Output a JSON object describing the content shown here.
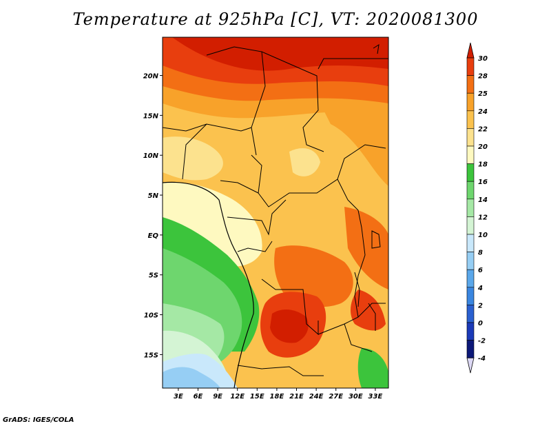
{
  "title": "Temperature at 925hPa [C], VT: 2020081300",
  "credit": "GrADS: IGES/COLA",
  "map": {
    "lat_labels": [
      "20N",
      "15N",
      "10N",
      "5N",
      "EQ",
      "5S",
      "10S",
      "15S"
    ],
    "lat_values": [
      20,
      15,
      10,
      5,
      0,
      -5,
      -10,
      -15
    ],
    "lon_labels": [
      "3E",
      "6E",
      "9E",
      "12E",
      "15E",
      "18E",
      "21E",
      "24E",
      "27E",
      "30E",
      "33E"
    ],
    "lon_values": [
      3,
      6,
      9,
      12,
      15,
      18,
      21,
      24,
      27,
      30,
      33
    ]
  },
  "colorbar": {
    "labels": [
      "30",
      "28",
      "25",
      "24",
      "22",
      "20",
      "18",
      "16",
      "14",
      "12",
      "10",
      "8",
      "6",
      "4",
      "2",
      "0",
      "-2",
      "-4"
    ],
    "colors": [
      "#d21e00",
      "#e83e0e",
      "#f36f14",
      "#f8a22a",
      "#fbc24e",
      "#fce28e",
      "#fef9c0",
      "#3cc43c",
      "#6ed66e",
      "#a5e8a5",
      "#d4f4d4",
      "#c9e8fb",
      "#96cef4",
      "#5aa7ea",
      "#3a86e0",
      "#2a60d0",
      "#1b3ab8",
      "#0c1878",
      "#dcd8f4"
    ]
  }
}
